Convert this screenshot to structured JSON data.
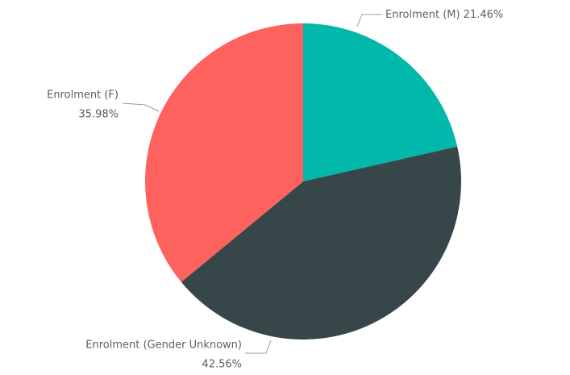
{
  "chart_data": {
    "type": "pie",
    "categories": [
      "Enrolment (M)",
      "Enrolment (Gender Unknown)",
      "Enrolment (F)"
    ],
    "values": [
      21.46,
      42.56,
      35.98
    ],
    "value_labels": [
      "21.46%",
      "42.56%",
      "35.98%"
    ],
    "colors": [
      "#01B8AA",
      "#374649",
      "#FD625E"
    ]
  }
}
